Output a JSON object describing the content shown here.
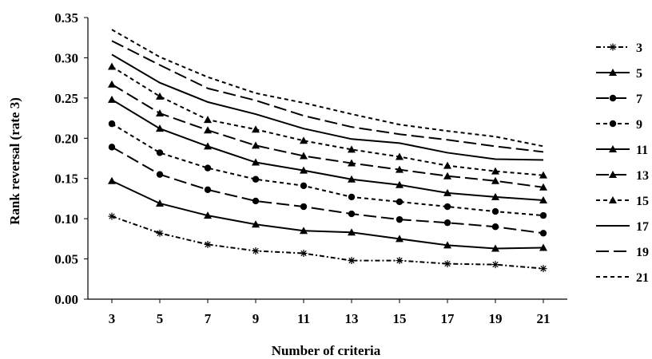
{
  "chart_data": {
    "type": "line",
    "xlabel": "Number of criteria",
    "ylabel": "Rank reversal (rate 3)",
    "x": [
      3,
      5,
      7,
      9,
      11,
      13,
      15,
      17,
      19,
      21
    ],
    "xticks": [
      "3",
      "5",
      "7",
      "9",
      "11",
      "13",
      "15",
      "17",
      "19",
      "21"
    ],
    "ylim": [
      0,
      0.35
    ],
    "yticks": [
      "0.00",
      "0.05",
      "0.10",
      "0.15",
      "0.20",
      "0.25",
      "0.30",
      "0.35"
    ],
    "grid": false,
    "legend_position": "right",
    "series": [
      {
        "name": "3",
        "style": "dash-dot",
        "marker": "star",
        "values": [
          0.103,
          0.082,
          0.068,
          0.06,
          0.057,
          0.048,
          0.048,
          0.044,
          0.043,
          0.038
        ]
      },
      {
        "name": "5",
        "style": "solid",
        "marker": "triangle",
        "values": [
          0.147,
          0.119,
          0.104,
          0.093,
          0.085,
          0.083,
          0.075,
          0.067,
          0.063,
          0.064
        ]
      },
      {
        "name": "7",
        "style": "long-dash",
        "marker": "circle",
        "values": [
          0.189,
          0.155,
          0.136,
          0.122,
          0.115,
          0.106,
          0.099,
          0.095,
          0.09,
          0.082
        ]
      },
      {
        "name": "9",
        "style": "dash",
        "marker": "circle",
        "values": [
          0.218,
          0.182,
          0.163,
          0.149,
          0.141,
          0.127,
          0.121,
          0.115,
          0.109,
          0.104
        ]
      },
      {
        "name": "11",
        "style": "solid",
        "marker": "triangle",
        "values": [
          0.248,
          0.212,
          0.19,
          0.17,
          0.16,
          0.149,
          0.142,
          0.132,
          0.127,
          0.123
        ]
      },
      {
        "name": "13",
        "style": "long-dash",
        "marker": "triangle",
        "values": [
          0.267,
          0.231,
          0.21,
          0.191,
          0.178,
          0.169,
          0.161,
          0.153,
          0.147,
          0.139
        ]
      },
      {
        "name": "15",
        "style": "dash",
        "marker": "triangle",
        "values": [
          0.289,
          0.252,
          0.223,
          0.211,
          0.197,
          0.186,
          0.177,
          0.166,
          0.159,
          0.154
        ]
      },
      {
        "name": "17",
        "style": "solid",
        "marker": "none",
        "values": [
          0.304,
          0.269,
          0.245,
          0.23,
          0.212,
          0.199,
          0.194,
          0.182,
          0.174,
          0.173
        ]
      },
      {
        "name": "19",
        "style": "long-dash",
        "marker": "none",
        "values": [
          0.321,
          0.291,
          0.262,
          0.247,
          0.228,
          0.214,
          0.205,
          0.198,
          0.19,
          0.183
        ]
      },
      {
        "name": "21",
        "style": "dash",
        "marker": "none",
        "values": [
          0.335,
          0.301,
          0.276,
          0.256,
          0.244,
          0.23,
          0.217,
          0.209,
          0.202,
          0.19
        ]
      }
    ],
    "colors": {
      "line": "#000000",
      "axis": "#000000",
      "background": "#ffffff"
    }
  }
}
